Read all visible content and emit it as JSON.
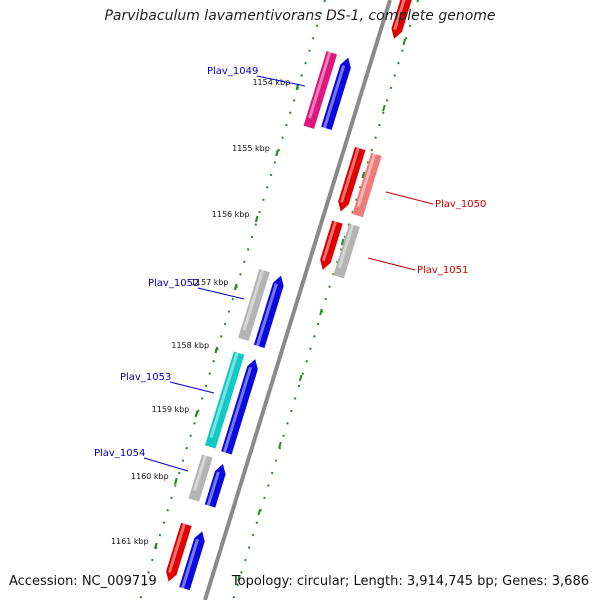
{
  "title": "Parvibaculum lavamentivorans DS-1, complete genome",
  "footer": {
    "accession": "Accession: NC_009719",
    "summary": "Topology: circular; Length: 3,914,745 bp; Genes: 3,686"
  },
  "colors": {
    "backbone": "#8a8a8a",
    "tick": "#228b22",
    "left_label": "#0000cc",
    "right_label": "#cc0000",
    "gene_magenta": "#e0167f",
    "gene_blue": "#0a0ae0",
    "gene_red": "#e00000",
    "gene_salmon": "#ee7a7a",
    "gene_gray": "#b4b4b4",
    "gene_cyan": "#11c8c8"
  },
  "scale_labels": [
    "1154 kbp",
    "1155 kbp",
    "1156 kbp",
    "1157 kbp",
    "1158 kbp",
    "1159 kbp",
    "1160 kbp",
    "1161 kbp"
  ],
  "gene_labels_left": [
    "Plav_1049",
    "Plav_1052",
    "Plav_1053",
    "Plav_1054"
  ],
  "gene_labels_right": [
    "Plav_1050",
    "Plav_1051"
  ]
}
